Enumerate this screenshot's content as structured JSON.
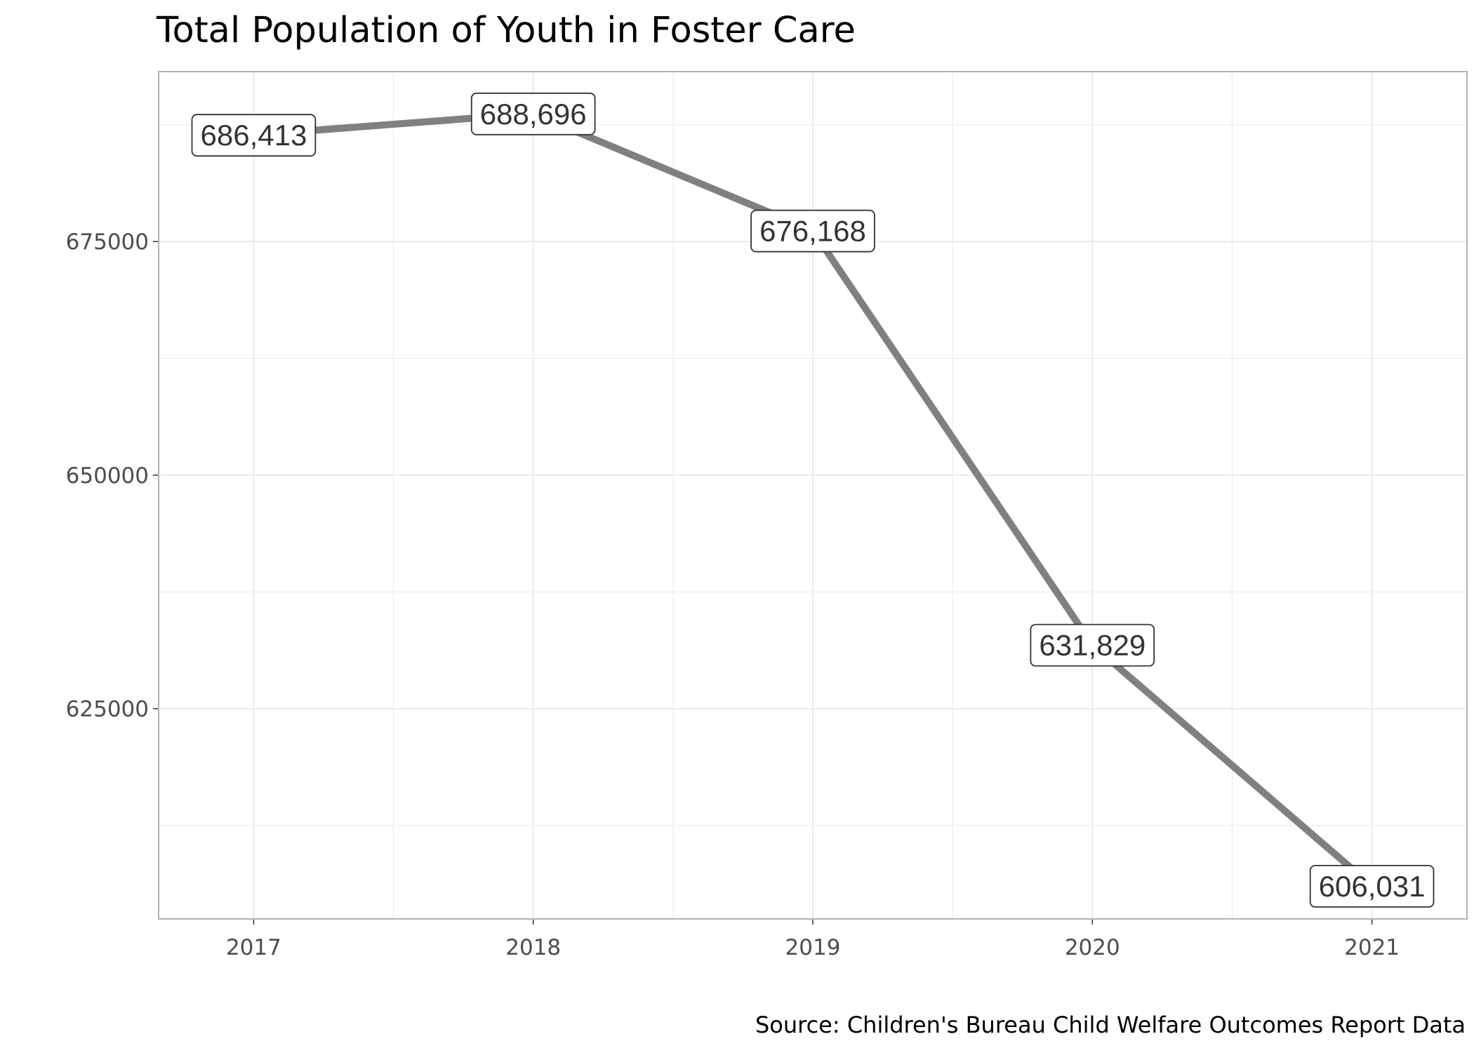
{
  "chart_data": {
    "type": "line",
    "title": "Total Population of Youth in Foster Care",
    "caption": "Source: Children's Bureau Child Welfare Outcomes Report Data",
    "xlabel": "",
    "ylabel": "",
    "x": [
      2017,
      2018,
      2019,
      2020,
      2021
    ],
    "x_tick_labels": [
      "2017",
      "2018",
      "2019",
      "2020",
      "2021"
    ],
    "values": [
      686413,
      688696,
      676168,
      631829,
      606031
    ],
    "data_labels": [
      "686,413",
      "688,696",
      "676,168",
      "631,829",
      "606,031"
    ],
    "y_ticks": [
      625000,
      650000,
      675000
    ],
    "y_tick_labels": [
      "625000",
      "650000",
      "675000"
    ],
    "xlim": [
      2016.66,
      2021.34
    ],
    "ylim": [
      602498,
      693190
    ],
    "grid": true,
    "legend": "none",
    "colors": {
      "line": "#808080",
      "grid": "#ebebeb",
      "panel_border": "#b3b3b3",
      "label_border": "#333333",
      "label_fill": "#ffffff"
    }
  }
}
